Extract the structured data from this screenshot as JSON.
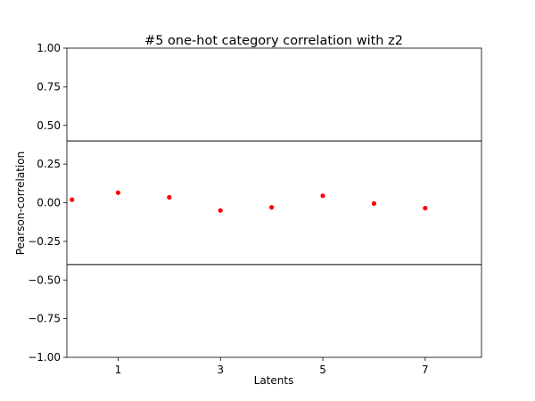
{
  "chart_data": {
    "type": "scatter",
    "title": "#5 one-hot category correlation with z2",
    "xlabel": "Latents",
    "ylabel": "Pearson-correlation",
    "xlim": [
      0,
      8.1
    ],
    "ylim": [
      -1.0,
      1.0
    ],
    "xticks": [
      1,
      3,
      5,
      7
    ],
    "yticks": [
      -1.0,
      -0.75,
      -0.5,
      -0.25,
      0.0,
      0.25,
      0.5,
      0.75,
      1.0
    ],
    "ytick_labels": [
      "−1.00",
      "−0.75",
      "−0.50",
      "−0.25",
      "0.00",
      "0.25",
      "0.50",
      "0.75",
      "1.00"
    ],
    "grid": false,
    "threshold_lines": [
      0.4,
      -0.4
    ],
    "series": [
      {
        "color": "#ff0000",
        "x": [
          0.1,
          1,
          2,
          3,
          4,
          5,
          6,
          7
        ],
        "y": [
          0.02,
          0.065,
          0.035,
          -0.05,
          -0.03,
          0.045,
          -0.005,
          -0.035
        ]
      }
    ]
  }
}
